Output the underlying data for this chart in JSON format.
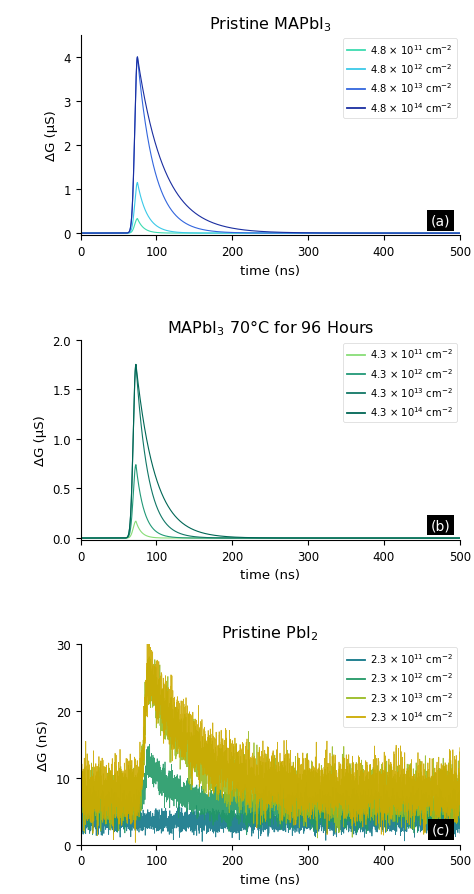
{
  "title_a": "Pristine MAPbI$_3$",
  "title_b": "MAPbI$_3$ 70°C for 96 Hours",
  "title_c": "Pristine PbI$_2$",
  "xlabel": "time (ns)",
  "ylabel_a": "ΔG (μS)",
  "ylabel_b": "ΔG (μS)",
  "ylabel_c": "ΔG (nS)",
  "xlim": [
    0,
    500
  ],
  "ylim_a": [
    -0.05,
    4.5
  ],
  "yticks_a": [
    0,
    1,
    2,
    3,
    4
  ],
  "ylim_b": [
    -0.02,
    2.0
  ],
  "yticks_b": [
    0.0,
    0.5,
    1.0,
    1.5,
    2.0
  ],
  "ylim_c": [
    0,
    30
  ],
  "yticks_c": [
    0,
    10,
    20,
    30
  ],
  "xticks": [
    0,
    100,
    200,
    300,
    400,
    500
  ],
  "panel_labels": [
    "(a)",
    "(b)",
    "(c)"
  ],
  "colors_a": [
    "#3ddbb0",
    "#3bc9e8",
    "#3366dd",
    "#1a2ea0"
  ],
  "colors_b": [
    "#88dd77",
    "#229977",
    "#117766",
    "#006655"
  ],
  "colors_c": [
    "#117788",
    "#229966",
    "#99bb22",
    "#ccaa00"
  ],
  "legend_labels_a": [
    "4.8 × 10$^{11}$ cm$^{-2}$",
    "4.8 × 10$^{12}$ cm$^{-2}$",
    "4.8 × 10$^{13}$ cm$^{-2}$",
    "4.8 × 10$^{14}$ cm$^{-2}$"
  ],
  "legend_labels_b": [
    "4.3 × 10$^{11}$ cm$^{-2}$",
    "4.3 × 10$^{12}$ cm$^{-2}$",
    "4.3 × 10$^{13}$ cm$^{-2}$",
    "4.3 × 10$^{14}$ cm$^{-2}$"
  ],
  "legend_labels_c": [
    "2.3 × 10$^{11}$ cm$^{-2}$",
    "2.3 × 10$^{12}$ cm$^{-2}$",
    "2.3 × 10$^{13}$ cm$^{-2}$",
    "2.3 × 10$^{14}$ cm$^{-2}$"
  ],
  "peak_time_a": 75,
  "peak_time_b": 73,
  "peak_time_c": 90,
  "peaks_a": [
    0.33,
    1.15,
    4.0,
    4.0
  ],
  "decay_taus_a": [
    8,
    13,
    22,
    35
  ],
  "peaks_b": [
    0.17,
    0.74,
    1.75,
    1.75
  ],
  "decay_taus_b": [
    7,
    11,
    16,
    25
  ],
  "baselines_c": [
    3.5,
    5.5,
    7.5,
    8.0
  ],
  "peaks_c": [
    0.0,
    7.0,
    18.0,
    18.0
  ],
  "decay_taus_c": [
    20,
    35,
    55,
    65
  ],
  "noise_c": [
    0.8,
    1.2,
    2.0,
    2.2
  ]
}
